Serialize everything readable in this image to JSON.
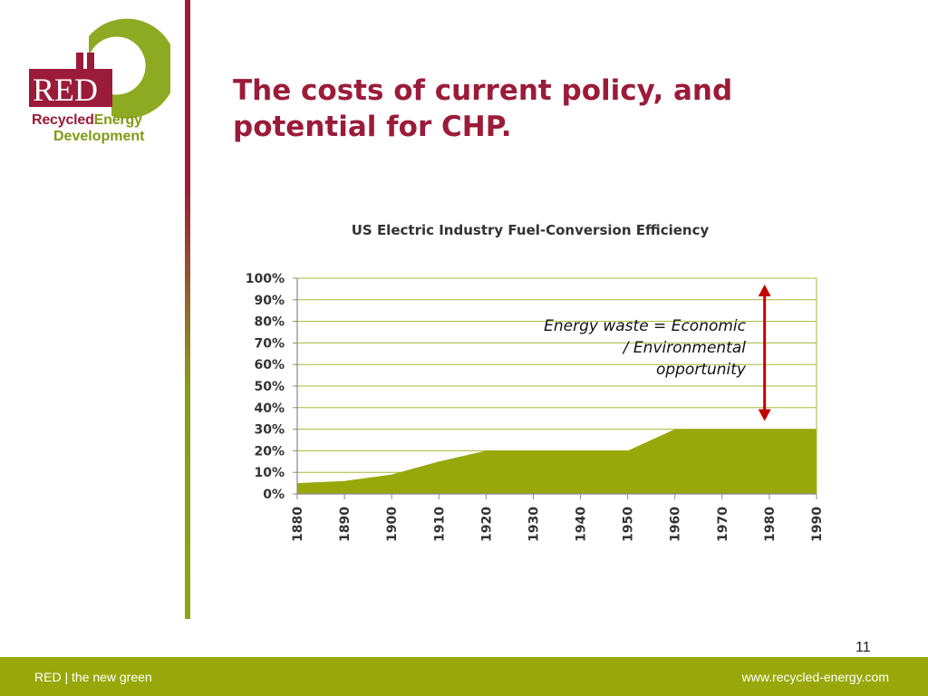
{
  "slide": {
    "title": "The costs of current policy, and potential for CHP.",
    "page_number": "11"
  },
  "logo": {
    "abbr": "RED",
    "name_part1": "Recycled",
    "name_part2": "Energy",
    "name_line2": "Development"
  },
  "footer": {
    "left_text": "RED | the new green",
    "right_text": "www.recycled-energy.com"
  },
  "colors": {
    "brand_red": "#9b1b3a",
    "brand_green": "#98a80a",
    "area_fill": "#97a80a",
    "arrow_red": "#c00000"
  },
  "chart_data": {
    "type": "area",
    "title": "US Electric Industry Fuel-Conversion Efficiency",
    "x": [
      1880,
      1890,
      1900,
      1910,
      1920,
      1930,
      1940,
      1950,
      1960,
      1970,
      1980,
      1990
    ],
    "series": [
      {
        "values": [
          5,
          6,
          9,
          15,
          20,
          20,
          20,
          20,
          30,
          30,
          30,
          30
        ]
      }
    ],
    "y_ticks": [
      "0%",
      "10%",
      "20%",
      "30%",
      "40%",
      "50%",
      "60%",
      "70%",
      "80%",
      "90%",
      "100%"
    ],
    "ylim": [
      0,
      100
    ],
    "grid": true,
    "annotation": {
      "lines": [
        "Energy waste = Economic",
        "/ Environmental",
        "opportunity"
      ],
      "arrow_x": 1979,
      "arrow_from": 30,
      "arrow_to": 100
    }
  }
}
